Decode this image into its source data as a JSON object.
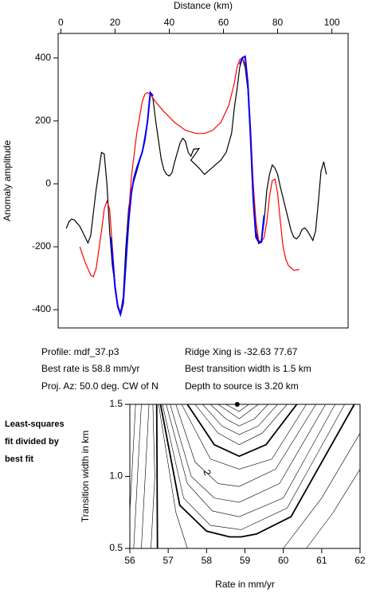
{
  "chart_data": [
    {
      "type": "line",
      "xlabel": "Distance (km)",
      "ylabel": "Anomaly amplitude",
      "xlim": [
        -1,
        106
      ],
      "ylim": [
        -458,
        478
      ],
      "xticks": [
        0,
        20,
        40,
        60,
        80,
        100
      ],
      "yticks": [
        -400,
        -200,
        0,
        200,
        400
      ],
      "series": [
        {
          "color": "#000000",
          "x": [
            2,
            3,
            4,
            5,
            7,
            9,
            10,
            11,
            13,
            15,
            16,
            17,
            18,
            19,
            20,
            21,
            22,
            23,
            24,
            25,
            26,
            28,
            30,
            32,
            33,
            34,
            35,
            36,
            37,
            38,
            39,
            40,
            41,
            42,
            44,
            45,
            46,
            47,
            48,
            49,
            51,
            48,
            51,
            53,
            55,
            57,
            59,
            61,
            63,
            64,
            65,
            66,
            67,
            68,
            69,
            70,
            71,
            72,
            73,
            74,
            75,
            76,
            77,
            78,
            79,
            80,
            81,
            83,
            85,
            86,
            87,
            88,
            89,
            90,
            91,
            92,
            93,
            94,
            95,
            96,
            97,
            98
          ],
          "values": [
            -142,
            -120,
            -112,
            -115,
            -135,
            -170,
            -188,
            -165,
            -20,
            100,
            95,
            0,
            -150,
            -260,
            -320,
            -385,
            -410,
            -360,
            -200,
            -80,
            -20,
            40,
            100,
            200,
            290,
            270,
            200,
            140,
            80,
            45,
            30,
            25,
            35,
            70,
            130,
            145,
            135,
            100,
            88,
            110,
            112,
            75,
            50,
            30,
            45,
            60,
            75,
            100,
            160,
            240,
            300,
            370,
            400,
            370,
            300,
            150,
            -50,
            -150,
            -190,
            -185,
            -120,
            -20,
            30,
            60,
            50,
            30,
            -10,
            -80,
            -150,
            -170,
            -175,
            -165,
            -145,
            -140,
            -150,
            -165,
            -180,
            -150,
            -60,
            40,
            70,
            30
          ]
        },
        {
          "color": "#ff0000",
          "x": [
            7,
            9,
            11,
            12,
            13,
            15,
            16,
            17,
            18,
            19,
            20,
            21,
            22,
            23,
            24,
            25,
            26,
            28,
            30,
            31,
            32,
            33,
            35,
            38,
            42,
            46,
            50,
            53,
            56,
            59,
            62,
            64,
            65,
            66,
            67,
            68,
            69,
            70,
            71,
            72,
            73,
            74,
            75,
            76,
            77,
            78,
            79,
            80,
            81,
            82,
            83,
            84,
            86,
            88
          ],
          "values": [
            -200,
            -250,
            -290,
            -295,
            -270,
            -150,
            -80,
            -55,
            -80,
            -200,
            -320,
            -390,
            -410,
            -370,
            -250,
            -100,
            20,
            160,
            260,
            285,
            290,
            285,
            260,
            230,
            195,
            170,
            160,
            160,
            170,
            195,
            250,
            320,
            370,
            395,
            400,
            380,
            310,
            180,
            0,
            -120,
            -180,
            -185,
            -170,
            -120,
            -40,
            10,
            15,
            -30,
            -120,
            -200,
            -240,
            -260,
            -275,
            -272
          ]
        },
        {
          "color": "#0000ff",
          "x": [
            18.5,
            20,
            21,
            22,
            23,
            24,
            25,
            26,
            27,
            28,
            30,
            31,
            32,
            33,
            34,
            null,
            66,
            67,
            68,
            69,
            70,
            71,
            72,
            73,
            74,
            75
          ],
          "values": [
            -170,
            -330,
            -390,
            -415,
            -380,
            -250,
            -120,
            -30,
            20,
            50,
            100,
            140,
            200,
            290,
            280,
            null,
            380,
            400,
            405,
            320,
            150,
            -50,
            -170,
            -185,
            -185,
            -100
          ]
        }
      ]
    },
    {
      "type": "contour",
      "xlabel": "Rate in mm/yr",
      "ylabel": "Transition width in km",
      "xlim": [
        56,
        62
      ],
      "ylim": [
        0.5,
        1.5
      ],
      "xticks": [
        56,
        57,
        58,
        59,
        60,
        61,
        62
      ],
      "yticks": [
        0.5,
        {
          "value": 1,
          "label": "1.0"
        },
        1.5
      ],
      "caption_lines": [
        "Least-squares",
        "fit divided by",
        "best fit"
      ],
      "info": [
        "Profile: mdf_37.p3",
        "Best rate is 58.8 mm/yr",
        "Proj. Az: 50.0 deg. CW of N",
        "Ridge Xing is -32.63 77.67",
        "Best transition width is 1.5 km",
        "Depth to source is   3.20 km"
      ],
      "best_fit": {
        "x": 58.8,
        "y": 1.5
      },
      "contours": [
        {
          "x": [
            58.5,
            58.85,
            59.1
          ],
          "y": [
            1.5,
            1.45,
            1.5
          ]
        },
        {
          "x": [
            58.3,
            58.85,
            59.35
          ],
          "y": [
            1.5,
            1.4,
            1.5
          ]
        },
        {
          "x": [
            58.1,
            58.5,
            58.85,
            59.25,
            59.6
          ],
          "y": [
            1.5,
            1.4,
            1.35,
            1.4,
            1.5
          ]
        },
        {
          "x": [
            57.9,
            58.4,
            58.85,
            59.35,
            59.85
          ],
          "y": [
            1.5,
            1.35,
            1.29,
            1.35,
            1.5
          ]
        },
        {
          "x": [
            57.7,
            58.3,
            58.85,
            59.45,
            60.1
          ],
          "y": [
            1.5,
            1.3,
            1.22,
            1.3,
            1.5
          ]
        },
        {
          "x": [
            57.5,
            58.2,
            58.85,
            59.55,
            60.35
          ],
          "y": [
            1.5,
            1.22,
            1.14,
            1.22,
            1.5
          ],
          "bold": true
        },
        {
          "x": [
            57.35,
            58.1,
            58.85,
            59.7,
            60.6
          ],
          "y": [
            1.5,
            1.12,
            1.05,
            1.12,
            1.5
          ]
        },
        {
          "x": [
            57.2,
            57.7,
            58.3,
            58.85,
            59.8,
            60.85
          ],
          "y": [
            1.5,
            1.1,
            0.95,
            0.93,
            1.05,
            1.5
          ],
          "label": "2"
        },
        {
          "x": [
            57.05,
            57.6,
            58.2,
            58.85,
            59.9,
            61.1
          ],
          "y": [
            1.5,
            1.0,
            0.85,
            0.82,
            0.95,
            1.5
          ]
        },
        {
          "x": [
            56.95,
            57.5,
            58.15,
            58.85,
            60.0,
            61.35
          ],
          "y": [
            1.5,
            0.95,
            0.76,
            0.72,
            0.85,
            1.5
          ]
        },
        {
          "x": [
            56.85,
            57.4,
            58.1,
            58.9,
            60.1,
            61.6
          ],
          "y": [
            1.5,
            0.85,
            0.66,
            0.63,
            0.78,
            1.5
          ]
        },
        {
          "x": [
            56.8,
            57.3,
            58.0,
            58.6,
            58.9,
            59.3,
            60.2,
            61.85
          ],
          "y": [
            1.5,
            0.8,
            0.62,
            0.58,
            0.58,
            0.6,
            0.72,
            1.5
          ],
          "bold": true
        },
        {
          "x": [
            56.75,
            57.2,
            57.5
          ],
          "y": [
            1.5,
            0.75,
            0.5
          ]
        },
        {
          "x": [
            60.0,
            61.0,
            62.0
          ],
          "y": [
            0.5,
            0.85,
            1.3
          ]
        },
        {
          "x": [
            60.6,
            61.3,
            62.0
          ],
          "y": [
            0.5,
            0.75,
            1.05
          ]
        },
        {
          "x": [
            56.7,
            56.72
          ],
          "y": [
            1.5,
            0.5
          ],
          "bold": true
        },
        {
          "x": [
            56.6,
            56.65,
            56.55
          ],
          "y": [
            1.5,
            1.0,
            0.5
          ]
        },
        {
          "x": [
            56.5,
            56.3
          ],
          "y": [
            1.5,
            0.5
          ]
        },
        {
          "x": [
            56.3,
            56.1
          ],
          "y": [
            1.5,
            0.5
          ]
        },
        {
          "x": [
            56.15,
            56.0
          ],
          "y": [
            1.5,
            0.75
          ]
        }
      ]
    }
  ]
}
